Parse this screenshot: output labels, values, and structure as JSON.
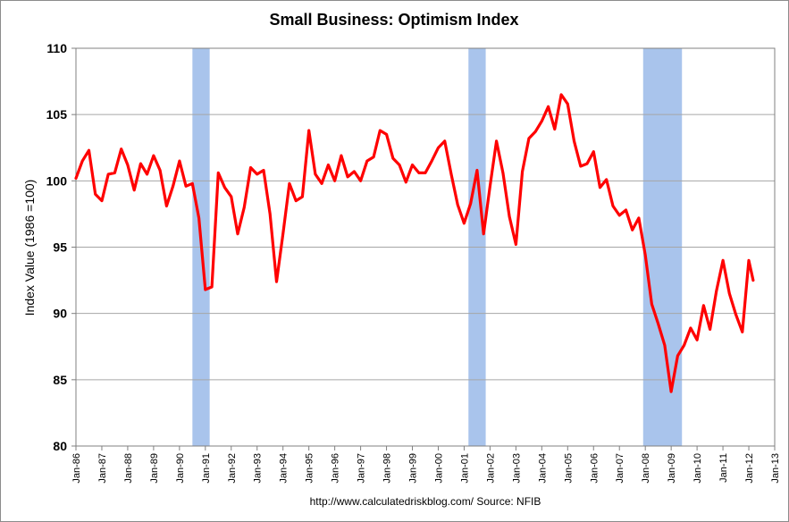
{
  "chart_data": {
    "type": "line",
    "title": "Small Business: Optimism Index",
    "ylabel": "Index Value (1986 =100)",
    "xlabel": "",
    "source_note": "http://www.calculatedriskblog.com/   Source: NFIB",
    "ylim": [
      80,
      110
    ],
    "yticks": [
      80,
      85,
      90,
      95,
      100,
      105,
      110
    ],
    "xlim": [
      "1986-01",
      "2013-01"
    ],
    "xticks": [
      "Jan-86",
      "Jan-87",
      "Jan-88",
      "Jan-89",
      "Jan-90",
      "Jan-91",
      "Jan-92",
      "Jan-93",
      "Jan-94",
      "Jan-95",
      "Jan-96",
      "Jan-97",
      "Jan-98",
      "Jan-99",
      "Jan-00",
      "Jan-01",
      "Jan-02",
      "Jan-03",
      "Jan-04",
      "Jan-05",
      "Jan-06",
      "Jan-07",
      "Jan-08",
      "Jan-09",
      "Jan-10",
      "Jan-11",
      "Jan-12",
      "Jan-13"
    ],
    "grid": true,
    "colors": {
      "line": "#ff0000",
      "recession": "#a9c4ec",
      "grid": "#a6a6a6",
      "axis": "#808080"
    },
    "recessions": [
      {
        "start": "1990-07",
        "end": "1991-03"
      },
      {
        "start": "2001-03",
        "end": "2001-11"
      },
      {
        "start": "2007-12",
        "end": "2009-06"
      }
    ],
    "series": [
      {
        "x": [
          "1986-01",
          "1986-04",
          "1986-07",
          "1986-10",
          "1987-01",
          "1987-04",
          "1987-07",
          "1987-10",
          "1988-01",
          "1988-04",
          "1988-07",
          "1988-10",
          "1989-01",
          "1989-04",
          "1989-07",
          "1989-10",
          "1990-01",
          "1990-04",
          "1990-07",
          "1990-10",
          "1991-01",
          "1991-04",
          "1991-07",
          "1991-10",
          "1992-01",
          "1992-04",
          "1992-07",
          "1992-10",
          "1993-01",
          "1993-04",
          "1993-07",
          "1993-10",
          "1994-01",
          "1994-04",
          "1994-07",
          "1994-10",
          "1995-01",
          "1995-04",
          "1995-07",
          "1995-10",
          "1996-01",
          "1996-04",
          "1996-07",
          "1996-10",
          "1997-01",
          "1997-04",
          "1997-07",
          "1997-10",
          "1998-01",
          "1998-04",
          "1998-07",
          "1998-10",
          "1999-01",
          "1999-04",
          "1999-07",
          "1999-10",
          "2000-01",
          "2000-04",
          "2000-07",
          "2000-10",
          "2001-01",
          "2001-04",
          "2001-07",
          "2001-10",
          "2002-01",
          "2002-04",
          "2002-07",
          "2002-10",
          "2003-01",
          "2003-04",
          "2003-07",
          "2003-10",
          "2004-01",
          "2004-04",
          "2004-07",
          "2004-10",
          "2005-01",
          "2005-04",
          "2005-07",
          "2005-10",
          "2006-01",
          "2006-04",
          "2006-07",
          "2006-10",
          "2007-01",
          "2007-04",
          "2007-07",
          "2007-10",
          "2008-01",
          "2008-04",
          "2008-07",
          "2008-10",
          "2009-01",
          "2009-04",
          "2009-07",
          "2009-10",
          "2010-01",
          "2010-04",
          "2010-07",
          "2010-10",
          "2011-01",
          "2011-04",
          "2011-07",
          "2011-10",
          "2012-01",
          "2012-03"
        ],
        "values": [
          100.2,
          101.5,
          102.3,
          99.0,
          98.5,
          100.5,
          100.6,
          102.4,
          101.2,
          99.3,
          101.3,
          100.5,
          101.9,
          100.8,
          98.1,
          99.6,
          101.5,
          99.6,
          99.8,
          97.2,
          91.8,
          92.0,
          100.6,
          99.5,
          98.8,
          96.0,
          98.0,
          101.0,
          100.5,
          100.8,
          97.5,
          92.4,
          96.0,
          99.8,
          98.5,
          98.8,
          103.8,
          100.5,
          99.8,
          101.2,
          100.0,
          101.9,
          100.3,
          100.7,
          100.0,
          101.5,
          101.8,
          103.8,
          103.5,
          101.7,
          101.2,
          99.9,
          101.2,
          100.6,
          100.6,
          101.5,
          102.5,
          103.0,
          100.5,
          98.2,
          96.8,
          98.3,
          100.8,
          96.0,
          99.6,
          103.0,
          100.6,
          97.3,
          95.2,
          100.7,
          103.2,
          103.7,
          104.5,
          105.6,
          103.9,
          106.5,
          105.8,
          103.0,
          101.1,
          101.3,
          102.2,
          99.5,
          100.1,
          98.1,
          97.4,
          97.8,
          96.3,
          97.2,
          94.4,
          90.7,
          89.2,
          87.6,
          84.1,
          86.8,
          87.6,
          88.9,
          88.0,
          90.6,
          88.8,
          91.7,
          94.0,
          91.5,
          89.9,
          88.6,
          94.0,
          92.5
        ]
      }
    ]
  }
}
